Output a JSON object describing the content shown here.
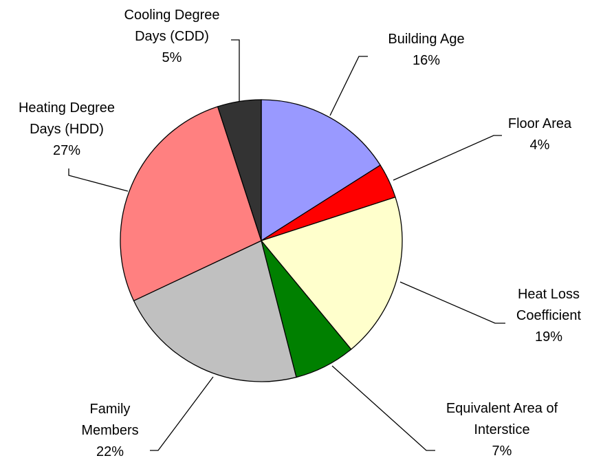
{
  "chart_data": {
    "type": "pie",
    "categories": [
      "Building Age",
      "Floor Area",
      "Heat Loss Coefficient",
      "Equivalent Area of Interstice",
      "Family Members",
      "Heating Degree Days (HDD)",
      "Cooling Degree Days (CDD)"
    ],
    "values": [
      16,
      4,
      19,
      7,
      22,
      27,
      5
    ],
    "value_labels": [
      "16%",
      "4%",
      "19%",
      "7%",
      "22%",
      "27%",
      "5%"
    ],
    "colors": [
      "#9999ff",
      "#ff0000",
      "#ffffcc",
      "#008000",
      "#c0c0c0",
      "#ff8080",
      "#333333"
    ]
  }
}
